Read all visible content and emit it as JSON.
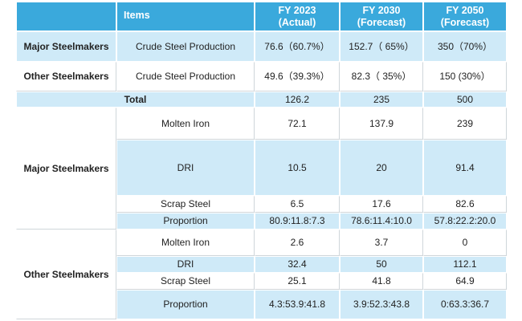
{
  "header": {
    "items": "Items",
    "fy2023": {
      "year": "FY 2023",
      "sub": "(Actual)"
    },
    "fy2030": {
      "year": "FY 2030",
      "sub": "(Forecast)"
    },
    "fy2050": {
      "year": "FY 2050",
      "sub": "(Forecast)"
    }
  },
  "production": {
    "major": {
      "label": "Major Steelmakers",
      "item": "Crude Steel Production",
      "values": [
        "76.6（60.7%）",
        "152.7（ 65%）",
        "350（70%）"
      ]
    },
    "other": {
      "label": "Other Steelmakers",
      "item": "Crude Steel Production",
      "values": [
        "49.6（39.3%）",
        "82.3（ 35%）",
        "150 (30%）"
      ]
    },
    "total": {
      "label": "Total",
      "values": [
        "126.2",
        "235",
        "500"
      ]
    }
  },
  "major_breakdown": {
    "label": "Major Steelmakers",
    "rows": [
      {
        "item": "Molten Iron",
        "values": [
          "72.1",
          "137.9",
          "239"
        ]
      },
      {
        "item": "DRI",
        "values": [
          "10.5",
          "20",
          "91.4"
        ]
      },
      {
        "item": "Scrap Steel",
        "values": [
          "6.5",
          "17.6",
          "82.6"
        ]
      },
      {
        "item": "Proportion",
        "values": [
          "80.9:11.8:7.3",
          "78.6:11.4:10.0",
          "57.8:22.2:20.0"
        ]
      }
    ]
  },
  "other_breakdown": {
    "label": "Other Steelmakers",
    "rows": [
      {
        "item": "Molten Iron",
        "values": [
          "2.6",
          "3.7",
          "0"
        ]
      },
      {
        "item": "DRI",
        "values": [
          "32.4",
          "50",
          "112.1"
        ]
      },
      {
        "item": "Scrap Steel",
        "values": [
          "25.1",
          "41.8",
          "64.9"
        ]
      },
      {
        "item": "Proportion",
        "values": [
          "4.3:53.9:41.8",
          "3.9:52.3:43.8",
          "0:63.3:36.7"
        ]
      }
    ]
  },
  "colors": {
    "header_bg": "#3aa9dc",
    "light_row_bg": "#cfeaf8",
    "white_row_bg": "#ffffff"
  }
}
